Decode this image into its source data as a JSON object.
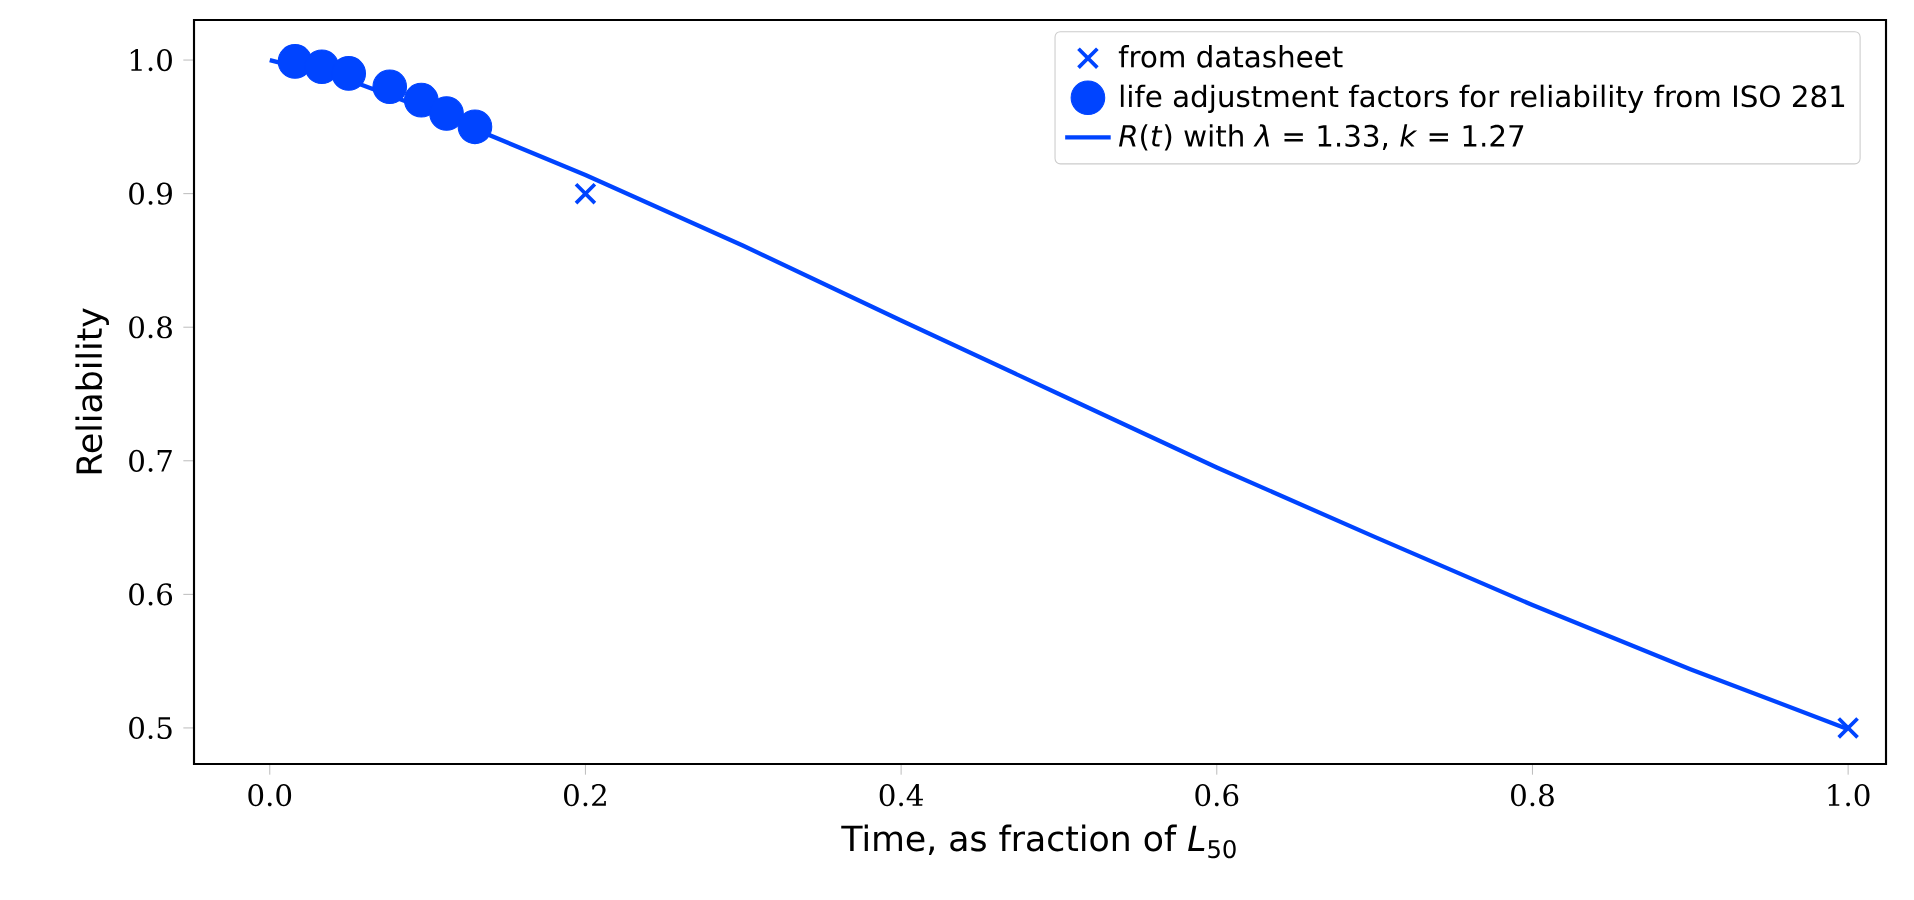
{
  "chart_data": {
    "type": "line",
    "xlabel": "Time, as fraction of *L*$_{50}$",
    "ylabel": "Reliability",
    "xlim": [
      -0.048,
      1.024
    ],
    "ylim": [
      0.473,
      1.03
    ],
    "xticks": [
      {
        "value": 0,
        "label": "0.0"
      },
      {
        "value": 0.2,
        "label": "0.2"
      },
      {
        "value": 0.4,
        "label": "0.4"
      },
      {
        "value": 0.6,
        "label": "0.6"
      },
      {
        "value": 0.8,
        "label": "0.8"
      },
      {
        "value": 1,
        "label": "1.0"
      }
    ],
    "yticks": [
      {
        "value": 0.5,
        "label": "0.5"
      },
      {
        "value": 0.6,
        "label": "0.6"
      },
      {
        "value": 0.7,
        "label": "0.7"
      },
      {
        "value": 0.8,
        "label": "0.8"
      },
      {
        "value": 0.9,
        "label": "0.9"
      },
      {
        "value": 1,
        "label": "1.0"
      }
    ],
    "legend": "top right",
    "grid": false,
    "series": [
      {
        "name": "from datasheet",
        "type": "scatter",
        "marker": "cross",
        "color": "#0044ff",
        "x": [
          0.2,
          1.0
        ],
        "values": [
          0.9,
          0.5
        ]
      },
      {
        "name": "life adjustment factors for reliability from ISO 281",
        "type": "scatter",
        "marker": "circle",
        "color": "#0044ff",
        "x": [
          0.016,
          0.033,
          0.05,
          0.076,
          0.096,
          0.112,
          0.13
        ],
        "values": [
          0.999,
          0.995,
          0.99,
          0.98,
          0.97,
          0.96,
          0.95
        ]
      },
      {
        "name": "*R*(*t*) with *λ* = 1.33, *k* = 1.27",
        "type": "line",
        "marker": "none",
        "color": "#0044ff",
        "x": [
          0,
          0.05,
          0.1,
          0.2,
          0.3,
          0.4,
          0.5,
          0.6,
          0.7,
          0.8,
          0.9,
          1.0
        ],
        "values": [
          1.0,
          0.985,
          0.963,
          0.914,
          0.861,
          0.805,
          0.75,
          0.695,
          0.643,
          0.592,
          0.544,
          0.499
        ]
      }
    ]
  }
}
